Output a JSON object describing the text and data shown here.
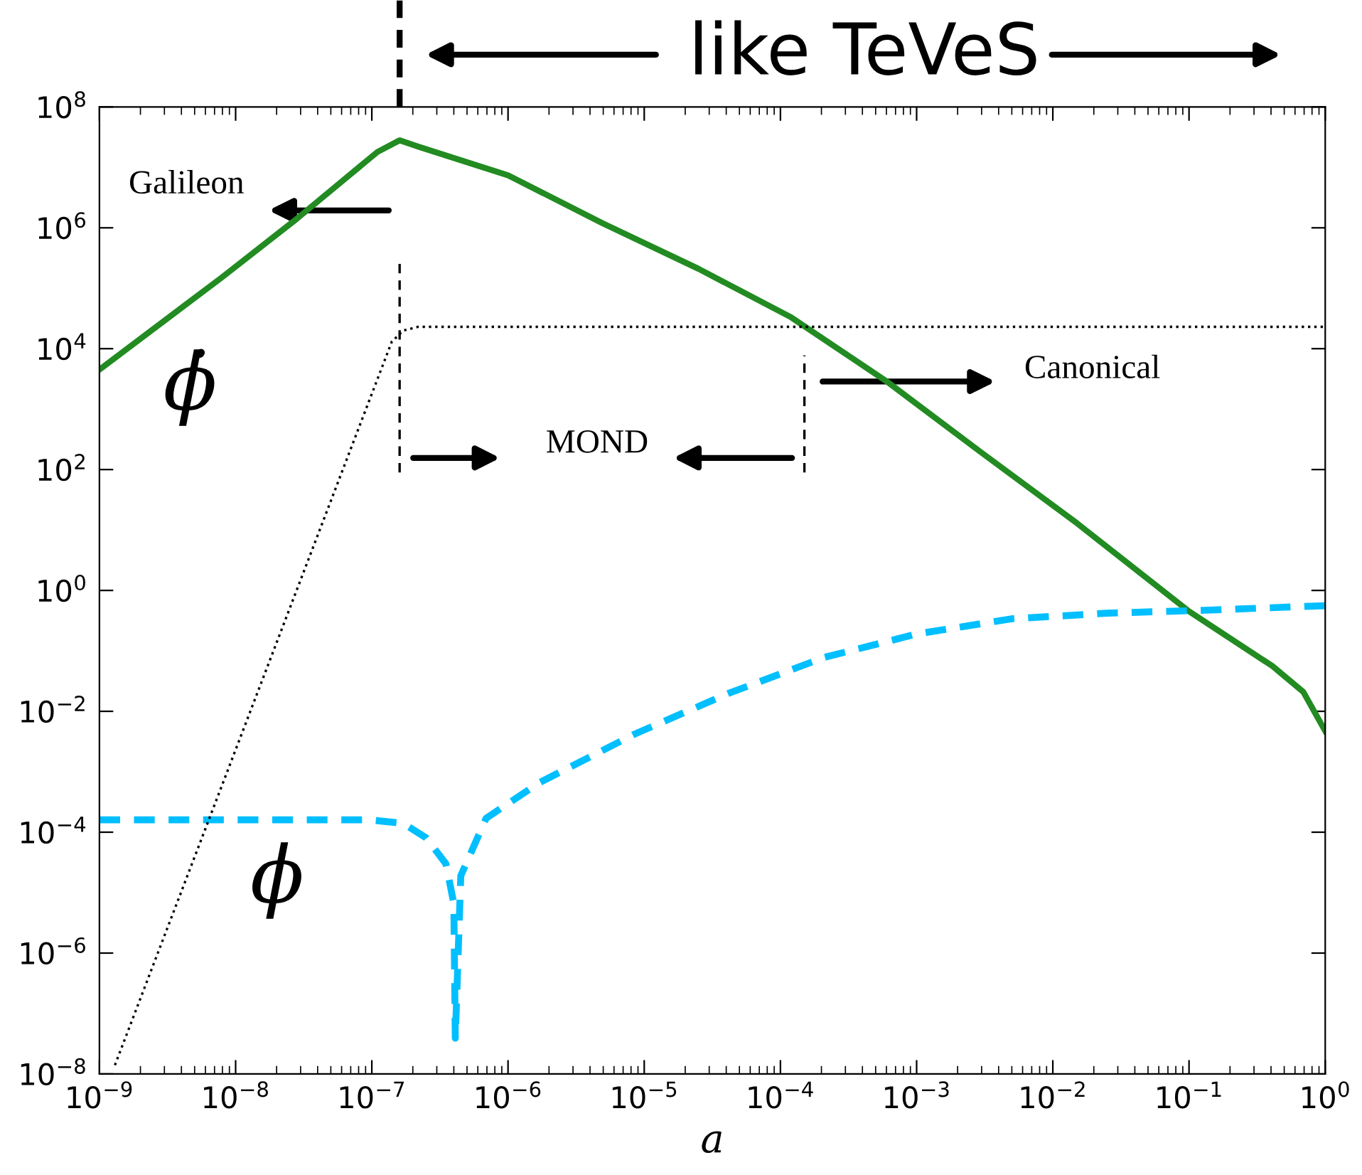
{
  "chart_data": {
    "type": "line",
    "log": "xy",
    "grid": false,
    "xlabel": "a",
    "xlim": [
      1e-09,
      1
    ],
    "ylim": [
      1e-08,
      100000000.0
    ],
    "xticks": [
      {
        "value": 1e-09,
        "label": "10$^{−9}$"
      },
      {
        "value": 1e-08,
        "label": "10$^{−8}$"
      },
      {
        "value": 1e-07,
        "label": "10$^{−7}$"
      },
      {
        "value": 1e-06,
        "label": "10$^{−6}$"
      },
      {
        "value": 1e-05,
        "label": "10$^{−5}$"
      },
      {
        "value": 0.0001,
        "label": "10$^{−4}$"
      },
      {
        "value": 0.001,
        "label": "10$^{−3}$"
      },
      {
        "value": 0.01,
        "label": "10$^{−2}$"
      },
      {
        "value": 0.1,
        "label": "10$^{−1}$"
      },
      {
        "value": 1,
        "label": "10$^{0}$"
      }
    ],
    "yticks": [
      {
        "value": 1e-08,
        "label": "10$^{−8}$"
      },
      {
        "value": 1e-06,
        "label": "10$^{−6}$"
      },
      {
        "value": 0.0001,
        "label": "10$^{−4}$"
      },
      {
        "value": 0.01,
        "label": "10$^{−2}$"
      },
      {
        "value": 1,
        "label": "10$^{0}$"
      },
      {
        "value": 100,
        "label": "10$^{2}$"
      },
      {
        "value": 10000.0,
        "label": "10$^{4}$"
      },
      {
        "value": 1000000.0,
        "label": "10$^{6}$"
      },
      {
        "value": 100000000.0,
        "label": "10$^{8}$"
      }
    ],
    "series": [
      {
        "name": "ϕ̇",
        "line_style": "solid",
        "color": "#228b22",
        "x": [
          1e-09,
          7.9e-09,
          2.8e-08,
          1.1e-07,
          1.6e-07,
          2.2e-07,
          1e-06,
          4.9e-06,
          2.5e-05,
          0.00012,
          0.0006,
          0.003,
          0.015,
          0.1,
          0.41,
          0.69,
          1
        ],
        "values": [
          4500.0,
          150000.0,
          1400000.0,
          18000000.0,
          28000000.0,
          22000000.0,
          7400000.0,
          1200000.0,
          210000.0,
          33000.0,
          2900.0,
          190,
          13,
          0.45,
          0.056,
          0.021,
          0.0047
        ]
      },
      {
        "name": "ϕ",
        "line_style": "dashed",
        "color": "#00bfff",
        "x": [
          1e-09,
          9.5e-08,
          1.7e-07,
          2.5e-07,
          3.5e-07,
          4e-07,
          4.1e-07,
          4.5e-07,
          6.9e-07,
          1.7e-06,
          8.5e-06,
          4.2e-05,
          0.00021,
          0.001,
          0.005,
          0.025,
          0.13,
          1
        ],
        "values": [
          0.00016,
          0.00016,
          0.00014,
          8.1e-05,
          3e-05,
          6.6e-06,
          3.9e-08,
          1.9e-05,
          0.00017,
          0.00066,
          0.0042,
          0.02,
          0.078,
          0.19,
          0.34,
          0.42,
          0.47,
          0.56
        ]
      },
      {
        "line_style": "dotted",
        "color": "#000000",
        "x": [
          1.3e-09,
          1.4e-07,
          1.7e-07,
          2.2e-07,
          1
        ],
        "values": [
          1.4e-08,
          13000.0,
          20000.0,
          23000.0,
          23000.0
        ]
      }
    ],
    "ref_lines": [
      {
        "axis": "x",
        "value": 1.6e-07,
        "line_style": "dashed",
        "color": "#000000"
      },
      {
        "axis": "x",
        "value": 0.00015,
        "line_style": "dashed",
        "color": "#000000"
      }
    ],
    "annotations": [
      "like TeVeS",
      "Galileon",
      "MOND",
      "Canonical"
    ]
  }
}
